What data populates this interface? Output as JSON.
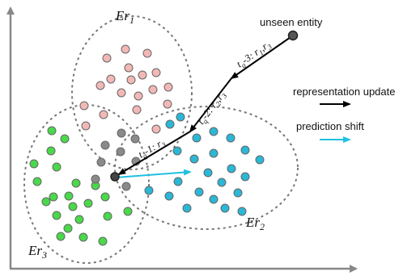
{
  "clusters": {
    "er1": {
      "base": "Er",
      "sub": "1",
      "color": "#f2b8b6"
    },
    "er2": {
      "base": "Er",
      "sub": "2",
      "color": "#2bb7d6"
    },
    "er3": {
      "base": "Er",
      "sub": "3",
      "color": "#49d94a"
    }
  },
  "overlap_color": "#8a8a8a",
  "entity": {
    "label": "unseen entity"
  },
  "path_labels": {
    "step1": {
      "t": "t",
      "tsub": "q",
      "rest": "-3: ",
      "r1": "r",
      "r1sub": "1",
      "comma": ",",
      "r2": "r",
      "r2sub": "3"
    },
    "step2": {
      "t": "t",
      "tsub": "q",
      "rest": "-2: ",
      "r1": "r",
      "r1sub": "2",
      "comma": ",",
      "r2": "r",
      "r2sub": "3"
    },
    "step3": {
      "t": "t",
      "tsub": "q",
      "rest": "-1: ",
      "r1": "r",
      "r1sub": "3"
    }
  },
  "legend": {
    "update_label": "representation update",
    "update_color": "#000000",
    "shift_label": "prediction shift",
    "shift_color": "#1fc0e0"
  }
}
